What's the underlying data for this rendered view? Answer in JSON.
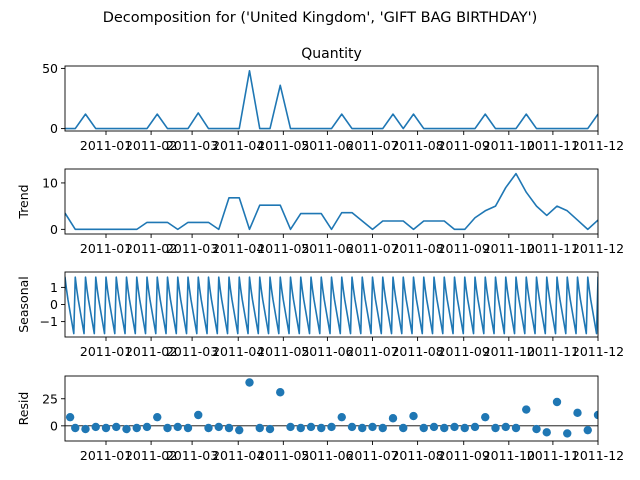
{
  "figure": {
    "suptitle": "Decomposition for ('United Kingdom', 'GIFT BAG BIRTHDAY')"
  },
  "style": {
    "line_color": "#1f77b4",
    "marker_color": "#1f77b4",
    "axis_color": "#000000",
    "zero_line_color": "#000000"
  },
  "x_tick_labels": [
    "2011-01",
    "2011-02",
    "2011-03",
    "2011-04",
    "2011-05",
    "2011-06",
    "2011-07",
    "2011-08",
    "2011-09",
    "2011-10",
    "2011-11",
    "2011-12"
  ],
  "chart_data": [
    {
      "type": "line",
      "title": "Quantity",
      "ylabel": "",
      "ylim": [
        -2,
        52
      ],
      "yticks": [
        0,
        50
      ],
      "xlim": [
        0,
        52
      ],
      "grid": false,
      "x": [
        0,
        1,
        2,
        3,
        4,
        5,
        6,
        7,
        8,
        9,
        10,
        11,
        12,
        13,
        14,
        15,
        16,
        17,
        18,
        19,
        20,
        21,
        22,
        23,
        24,
        25,
        26,
        27,
        28,
        29,
        30,
        31,
        32,
        33,
        34,
        35,
        36,
        37,
        38,
        39,
        40,
        41,
        42,
        43,
        44,
        45,
        46,
        47,
        48,
        49,
        50,
        51,
        52
      ],
      "values": [
        0,
        0,
        12,
        0,
        0,
        0,
        0,
        0,
        0,
        12,
        0,
        0,
        0,
        13,
        0,
        0,
        0,
        0,
        48,
        0,
        0,
        36,
        0,
        0,
        0,
        0,
        0,
        12,
        0,
        0,
        0,
        0,
        12,
        0,
        12,
        0,
        0,
        0,
        0,
        0,
        0,
        12,
        0,
        0,
        0,
        12,
        0,
        0,
        0,
        0,
        0,
        0,
        12
      ]
    },
    {
      "type": "line",
      "title": "",
      "ylabel": "Trend",
      "ylim": [
        -1,
        13
      ],
      "yticks": [
        0,
        10
      ],
      "xlim": [
        0,
        52
      ],
      "grid": false,
      "x": [
        0,
        1,
        2,
        3,
        4,
        5,
        6,
        7,
        8,
        9,
        10,
        11,
        12,
        13,
        14,
        15,
        16,
        17,
        18,
        19,
        20,
        21,
        22,
        23,
        24,
        25,
        26,
        27,
        28,
        29,
        30,
        31,
        32,
        33,
        34,
        35,
        36,
        37,
        38,
        39,
        40,
        41,
        42,
        43,
        44,
        45,
        46,
        47,
        48,
        49,
        50,
        51,
        52
      ],
      "values": [
        3.5,
        0,
        0,
        0,
        0,
        0,
        0,
        0,
        1.5,
        1.5,
        1.5,
        0,
        1.5,
        1.5,
        1.5,
        0,
        6.8,
        6.8,
        0,
        5.2,
        5.2,
        5.2,
        0,
        3.4,
        3.4,
        3.4,
        0,
        3.6,
        3.6,
        1.8,
        0,
        1.8,
        1.8,
        1.8,
        0,
        1.8,
        1.8,
        1.8,
        0,
        0,
        2.5,
        4,
        5,
        9,
        12,
        8,
        5,
        3,
        5,
        4,
        2,
        0,
        2
      ]
    },
    {
      "type": "line",
      "title": "",
      "ylabel": "Seasonal",
      "ylim": [
        -1.9,
        1.9
      ],
      "yticks": [
        -1,
        0,
        1
      ],
      "ytick_labels": [
        "−1",
        "0",
        "1"
      ],
      "xlim": [
        0,
        52
      ],
      "grid": false,
      "period_weeks": 1,
      "profile": [
        1.6,
        0.9,
        0.3,
        -0.2,
        -0.7,
        -1.2,
        -1.7
      ]
    },
    {
      "type": "scatter",
      "title": "",
      "ylabel": "Resid",
      "ylim": [
        -14,
        46
      ],
      "yticks": [
        0,
        25
      ],
      "xlim": [
        0,
        52
      ],
      "grid": false,
      "zero_line": true,
      "x": [
        0.5,
        1,
        2,
        3,
        4,
        5,
        6,
        7,
        8,
        9,
        10,
        11,
        12,
        13,
        14,
        15,
        16,
        17,
        18,
        19,
        20,
        21,
        22,
        23,
        24,
        25,
        26,
        27,
        28,
        29,
        30,
        31,
        32,
        33,
        34,
        35,
        36,
        37,
        38,
        39,
        40,
        41,
        42,
        43,
        44,
        45,
        46,
        47,
        48,
        49,
        50,
        51,
        52
      ],
      "values": [
        8,
        -2,
        -3,
        -1,
        -2,
        -1,
        -3,
        -2,
        -1,
        8,
        -2,
        -1,
        -2,
        10,
        -2,
        -1,
        -2,
        -4,
        40,
        -2,
        -3,
        31,
        -1,
        -2,
        -1,
        -2,
        -1,
        8,
        -1,
        -2,
        -1,
        -2,
        7,
        -2,
        9,
        -2,
        -1,
        -2,
        -1,
        -2,
        -1,
        8,
        -2,
        -1,
        -2,
        15,
        -3,
        -6,
        22,
        -7,
        12,
        -4,
        10
      ]
    }
  ]
}
